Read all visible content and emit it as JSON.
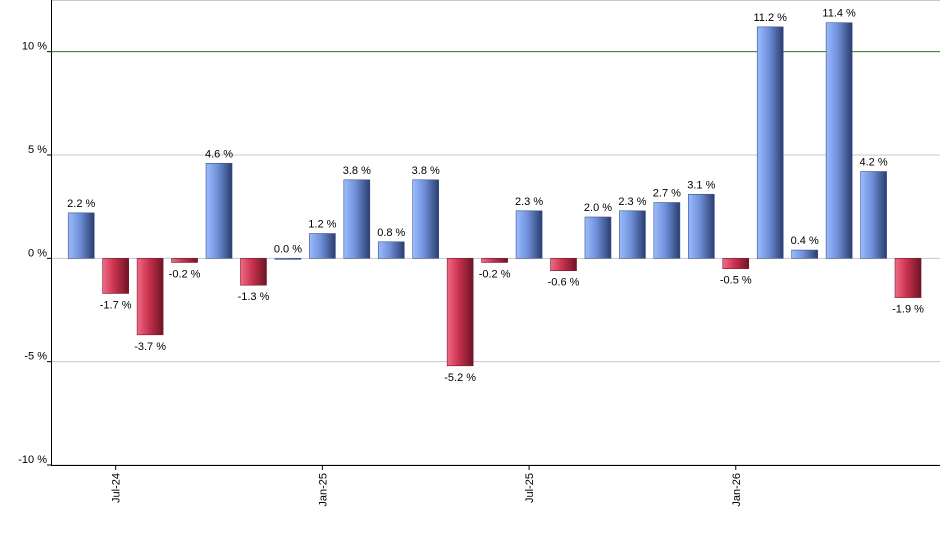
{
  "chart_data": {
    "type": "bar",
    "title": "",
    "xlabel": "",
    "ylabel": "",
    "ylim": [
      -10,
      12.5
    ],
    "y_ticks": [
      -10,
      -5,
      0,
      5,
      10
    ],
    "y_tick_labels": [
      "-10 %",
      "-5 %",
      "0 %",
      "5 %",
      "10 %"
    ],
    "grid": true,
    "reference_line": {
      "value": 10,
      "color": "#2e7d32"
    },
    "categories": [
      "2024-06",
      "2024-07",
      "2024-08",
      "2024-09",
      "2024-10",
      "2024-11",
      "2024-12",
      "2025-01",
      "2025-02",
      "2025-03",
      "2025-04",
      "2025-05",
      "2025-06",
      "2025-07",
      "2025-08",
      "2025-09",
      "2025-10",
      "2025-11",
      "2025-12",
      "2026-01",
      "2026-02",
      "2026-03",
      "2026-04",
      "2026-05",
      "2026-06"
    ],
    "x_tick_labels": [
      {
        "category": "2024-07",
        "label": "Jul-24"
      },
      {
        "category": "2025-01",
        "label": "Jan-25"
      },
      {
        "category": "2025-07",
        "label": "Jul-25"
      },
      {
        "category": "2026-01",
        "label": "Jan-26"
      }
    ],
    "values": [
      2.2,
      -1.7,
      -3.7,
      -0.2,
      4.6,
      -1.3,
      0.0,
      1.2,
      3.8,
      0.8,
      3.8,
      -5.2,
      -0.2,
      2.3,
      -0.6,
      2.0,
      2.3,
      2.7,
      3.1,
      -0.5,
      11.2,
      0.4,
      11.4,
      4.2,
      -1.9
    ],
    "labels": [
      "2.2 %",
      "-1.7 %",
      "-3.7 %",
      "-0.2 %",
      "4.6 %",
      "-1.3 %",
      "0.0 %",
      "1.2 %",
      "3.8 %",
      "0.8 %",
      "3.8 %",
      "-5.2 %",
      "-0.2 %",
      "2.3 %",
      "-0.6 %",
      "2.0 %",
      "2.3 %",
      "2.7 %",
      "3.1 %",
      "-0.5 %",
      "11.2 %",
      "0.4 %",
      "11.4 %",
      "4.2 %",
      "-1.9 %"
    ],
    "colors": {
      "positive": "#7a9be0",
      "negative": "#c8324e"
    }
  }
}
